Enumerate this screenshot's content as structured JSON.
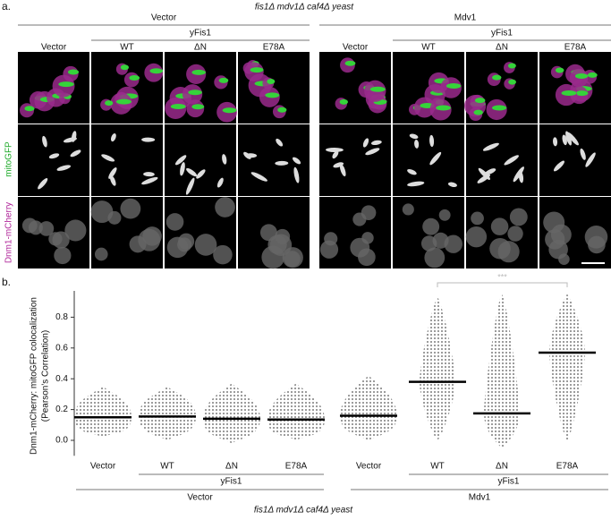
{
  "panel_a": {
    "label": "a.",
    "title": "fis1Δ mdv1Δ caf4Δ yeast",
    "groups": [
      {
        "name": "Vector",
        "sub": "yFis1"
      },
      {
        "name": "Mdv1",
        "sub": "yFis1"
      }
    ],
    "columns": [
      "Vector",
      "WT",
      "ΔN",
      "E78A",
      "Vector",
      "WT",
      "ΔN",
      "E78A"
    ],
    "rows": [
      "mitoGFP",
      "Dnm1-mCherry"
    ]
  },
  "chart_data": {
    "type": "swarm",
    "label": "b.",
    "title": "fis1Δ mdv1Δ caf4Δ yeast",
    "y_label": [
      "Dnm1-mCherry: mitoGFP colocalization",
      "(Pearson's Correlation)"
    ],
    "categories": [
      "Vector",
      "WT",
      "ΔN",
      "E78A",
      "Vector",
      "WT",
      "ΔN",
      "E78A"
    ],
    "groups": [
      {
        "name": "Vector",
        "sub": "yFis1"
      },
      {
        "name": "Mdv1",
        "sub": "yFis1"
      }
    ],
    "values": [
      0.15,
      0.155,
      0.14,
      0.135,
      0.16,
      0.38,
      0.175,
      0.57
    ],
    "min_values": [
      0.02,
      0.0,
      -0.02,
      0.0,
      0.0,
      0.0,
      -0.05,
      0.0
    ],
    "max_values": [
      0.35,
      0.35,
      0.37,
      0.37,
      0.42,
      0.93,
      0.95,
      0.95
    ],
    "ylim": [
      -0.1,
      1.0
    ],
    "yticks": [
      {
        "value": 0,
        "label": "0.0"
      },
      {
        "value": 0.2,
        "label": "0.2"
      },
      {
        "value": 0.4,
        "label": "0.4"
      },
      {
        "value": 0.6,
        "label": "0.6"
      },
      {
        "value": 0.8,
        "label": "0.8"
      }
    ],
    "annotation": "***",
    "color": "#555555"
  }
}
